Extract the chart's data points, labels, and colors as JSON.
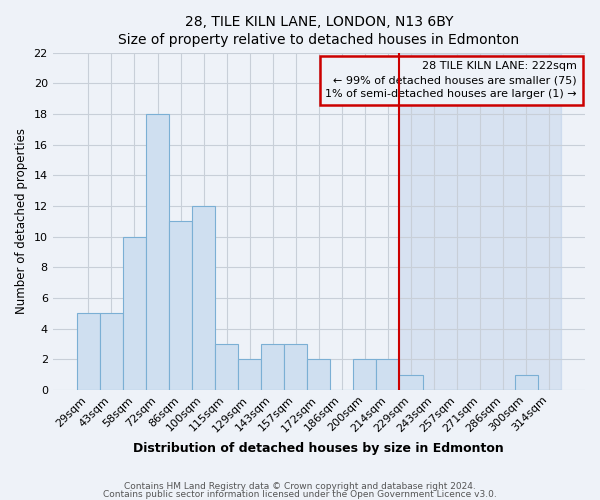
{
  "title": "28, TILE KILN LANE, LONDON, N13 6BY",
  "subtitle": "Size of property relative to detached houses in Edmonton",
  "xlabel": "Distribution of detached houses by size in Edmonton",
  "ylabel": "Number of detached properties",
  "bar_labels": [
    "29sqm",
    "43sqm",
    "58sqm",
    "72sqm",
    "86sqm",
    "100sqm",
    "115sqm",
    "129sqm",
    "143sqm",
    "157sqm",
    "172sqm",
    "186sqm",
    "200sqm",
    "214sqm",
    "229sqm",
    "243sqm",
    "257sqm",
    "271sqm",
    "286sqm",
    "300sqm",
    "314sqm"
  ],
  "bar_heights": [
    5,
    5,
    10,
    18,
    11,
    12,
    3,
    2,
    3,
    3,
    2,
    0,
    2,
    2,
    1,
    0,
    0,
    0,
    0,
    1,
    0
  ],
  "bar_color": "#cfdff0",
  "bar_edge_color": "#7bafd4",
  "vline_color": "#cc0000",
  "annotation_title": "28 TILE KILN LANE: 222sqm",
  "annotation_line1": "← 99% of detached houses are smaller (75)",
  "annotation_line2": "1% of semi-detached houses are larger (1) →",
  "annotation_box_color": "#cc0000",
  "ylim": [
    0,
    22
  ],
  "yticks": [
    0,
    2,
    4,
    6,
    8,
    10,
    12,
    14,
    16,
    18,
    20,
    22
  ],
  "footnote1": "Contains HM Land Registry data © Crown copyright and database right 2024.",
  "footnote2": "Contains public sector information licensed under the Open Government Licence v3.0.",
  "bg_color": "#eef2f8",
  "bg_right_color": "#e8eef7",
  "grid_color": "#c8cfd8"
}
